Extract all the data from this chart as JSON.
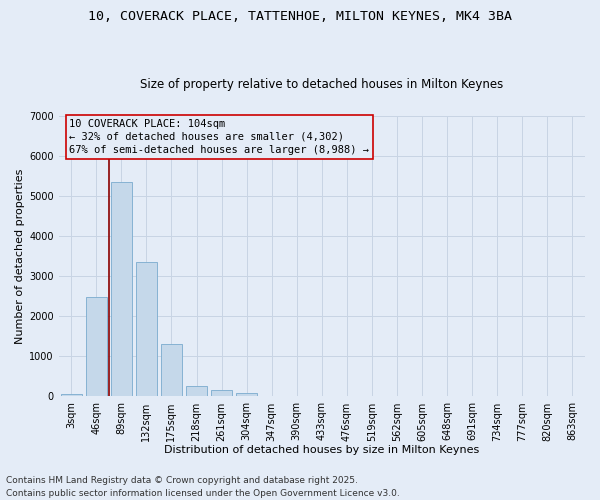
{
  "title_line1": "10, COVERACK PLACE, TATTENHOE, MILTON KEYNES, MK4 3BA",
  "title_line2": "Size of property relative to detached houses in Milton Keynes",
  "xlabel": "Distribution of detached houses by size in Milton Keynes",
  "ylabel": "Number of detached properties",
  "categories": [
    "3sqm",
    "46sqm",
    "89sqm",
    "132sqm",
    "175sqm",
    "218sqm",
    "261sqm",
    "304sqm",
    "347sqm",
    "390sqm",
    "433sqm",
    "476sqm",
    "519sqm",
    "562sqm",
    "605sqm",
    "648sqm",
    "691sqm",
    "734sqm",
    "777sqm",
    "820sqm",
    "863sqm"
  ],
  "values": [
    70,
    2480,
    5350,
    3350,
    1300,
    250,
    170,
    80,
    20,
    5,
    2,
    1,
    0,
    0,
    0,
    0,
    0,
    0,
    0,
    0,
    0
  ],
  "bar_color": "#c5d8ea",
  "bar_edgecolor": "#7aabce",
  "vline_color": "#8b0000",
  "vline_x_index": 1.5,
  "annotation_text": "10 COVERACK PLACE: 104sqm\n← 32% of detached houses are smaller (4,302)\n67% of semi-detached houses are larger (8,988) →",
  "annotation_box_edgecolor": "#cc0000",
  "ylim": [
    0,
    7000
  ],
  "yticks": [
    0,
    1000,
    2000,
    3000,
    4000,
    5000,
    6000,
    7000
  ],
  "grid_color": "#c8d4e4",
  "bg_color": "#e4ecf7",
  "footer_line1": "Contains HM Land Registry data © Crown copyright and database right 2025.",
  "footer_line2": "Contains public sector information licensed under the Open Government Licence v3.0.",
  "title_fontsize": 9.5,
  "subtitle_fontsize": 8.5,
  "xlabel_fontsize": 8,
  "ylabel_fontsize": 8,
  "tick_fontsize": 7,
  "annotation_fontsize": 7.5,
  "footer_fontsize": 6.5
}
